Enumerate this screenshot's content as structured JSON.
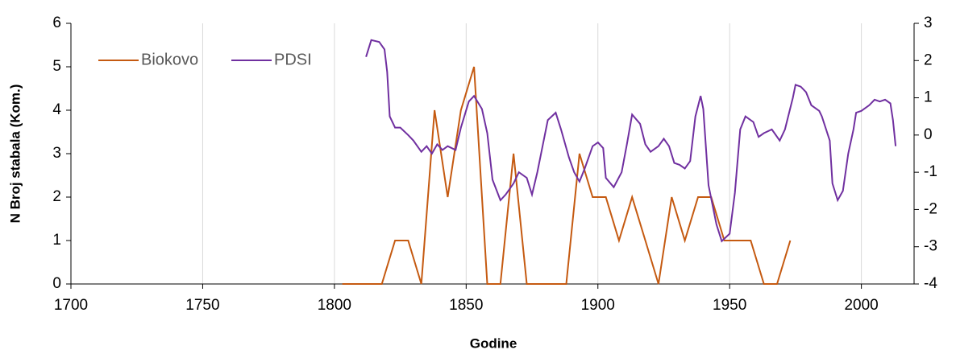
{
  "chart_data": {
    "type": "line",
    "x_label": "Godine",
    "y_label": "N Broj stabala (Kom.)",
    "xlim": [
      1700,
      2020
    ],
    "xticks": [
      1700,
      1750,
      1800,
      1850,
      1900,
      1950,
      2000
    ],
    "ylim": [
      0,
      6
    ],
    "yticks": [
      0,
      1,
      2,
      3,
      4,
      5,
      6
    ],
    "y2lim": [
      -4,
      3
    ],
    "y2ticks": [
      -4,
      -3,
      -2,
      -1,
      0,
      1,
      2,
      3
    ],
    "grid": "x",
    "legend": "upper left",
    "series": [
      {
        "name": "Biokovo",
        "color": "#c55a11",
        "x": [
          1803,
          1808,
          1813,
          1818,
          1823,
          1828,
          1833,
          1838,
          1843,
          1848,
          1853,
          1858,
          1863,
          1868,
          1873,
          1878,
          1883,
          1888,
          1893,
          1898,
          1903,
          1908,
          1913,
          1918,
          1923,
          1928,
          1933,
          1938,
          1943,
          1948,
          1953,
          1958,
          1963,
          1968,
          1973
        ],
        "values": [
          0,
          0,
          0,
          0,
          1,
          1,
          0,
          4,
          2,
          4,
          5,
          0,
          0,
          3,
          0,
          0,
          0,
          0,
          3,
          2,
          2,
          1,
          2,
          1,
          0,
          2,
          1,
          2,
          2,
          1,
          1,
          1,
          0,
          0,
          1
        ]
      },
      {
        "name": "PDSI",
        "color": "#7030a0",
        "axis": "y2",
        "x": [
          1812,
          1814,
          1817,
          1819,
          1820,
          1821,
          1823,
          1825,
          1828,
          1830,
          1833,
          1835,
          1837,
          1839,
          1841,
          1843,
          1846,
          1848,
          1851,
          1853,
          1856,
          1858,
          1860,
          1863,
          1865,
          1868,
          1870,
          1873,
          1875,
          1877,
          1879,
          1881,
          1884,
          1886,
          1889,
          1891,
          1893,
          1895,
          1898,
          1900,
          1902,
          1903,
          1906,
          1909,
          1911,
          1913,
          1916,
          1918,
          1920,
          1923,
          1925,
          1927,
          1929,
          1931,
          1933,
          1935,
          1937,
          1939,
          1940,
          1942,
          1945,
          1947,
          1950,
          1952,
          1954,
          1956,
          1959,
          1961,
          1963,
          1966,
          1967,
          1969,
          1971,
          1974,
          1975,
          1977,
          1979,
          1981,
          1984,
          1985,
          1988,
          1989,
          1991,
          1993,
          1995,
          1997,
          1998,
          2000,
          2003,
          2005,
          2007,
          2009,
          2011,
          2012,
          2013
        ],
        "values": [
          2.1,
          2.55,
          2.5,
          2.3,
          1.7,
          0.5,
          0.2,
          0.2,
          0,
          -0.15,
          -0.45,
          -0.3,
          -0.5,
          -0.25,
          -0.4,
          -0.3,
          -0.4,
          0.2,
          0.9,
          1.05,
          0.7,
          0.05,
          -1.2,
          -1.75,
          -1.6,
          -1.3,
          -1,
          -1.15,
          -1.6,
          -1,
          -0.3,
          0.4,
          0.6,
          0.15,
          -0.6,
          -1,
          -1.25,
          -0.9,
          -0.3,
          -0.2,
          -0.35,
          -1.15,
          -1.4,
          -1,
          -0.25,
          0.55,
          0.3,
          -0.25,
          -0.45,
          -0.3,
          -0.1,
          -0.3,
          -0.75,
          -0.8,
          -0.9,
          -0.7,
          0.5,
          1.05,
          0.7,
          -1.35,
          -2.4,
          -2.85,
          -2.65,
          -1.55,
          0.15,
          0.5,
          0.35,
          -0.05,
          0.05,
          0.15,
          0.05,
          -0.15,
          0.15,
          1,
          1.35,
          1.3,
          1.15,
          0.8,
          0.65,
          0.5,
          -0.15,
          -1.3,
          -1.75,
          -1.5,
          -0.5,
          0.15,
          0.6,
          0.65,
          0.8,
          0.95,
          0.9,
          0.95,
          0.85,
          0.4,
          -0.3
        ]
      }
    ]
  }
}
